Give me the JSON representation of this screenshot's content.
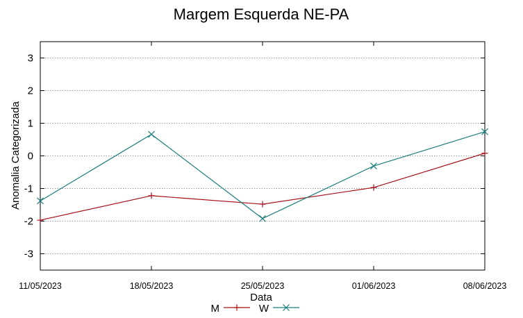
{
  "chart_data": {
    "type": "line",
    "title": "Margem Esquerda NE-PA",
    "xlabel": "Data",
    "ylabel": "Anomalia Categorizada",
    "categories": [
      "11/05/2023",
      "18/05/2023",
      "25/05/2023",
      "01/06/2023",
      "08/06/2023"
    ],
    "ylim": [
      -3.5,
      3.5
    ],
    "yticks": [
      -3,
      -2,
      -1,
      0,
      1,
      2,
      3
    ],
    "grid": true,
    "legend_position": "bottom",
    "series": [
      {
        "name": "M",
        "color": "#a50f15",
        "marker": "plus",
        "values": [
          -1.97,
          -1.22,
          -1.48,
          -0.97,
          0.08
        ]
      },
      {
        "name": "W",
        "color": "#1c7d7d",
        "marker": "cross",
        "values": [
          -1.38,
          0.66,
          -1.92,
          -0.31,
          0.74
        ]
      }
    ]
  }
}
